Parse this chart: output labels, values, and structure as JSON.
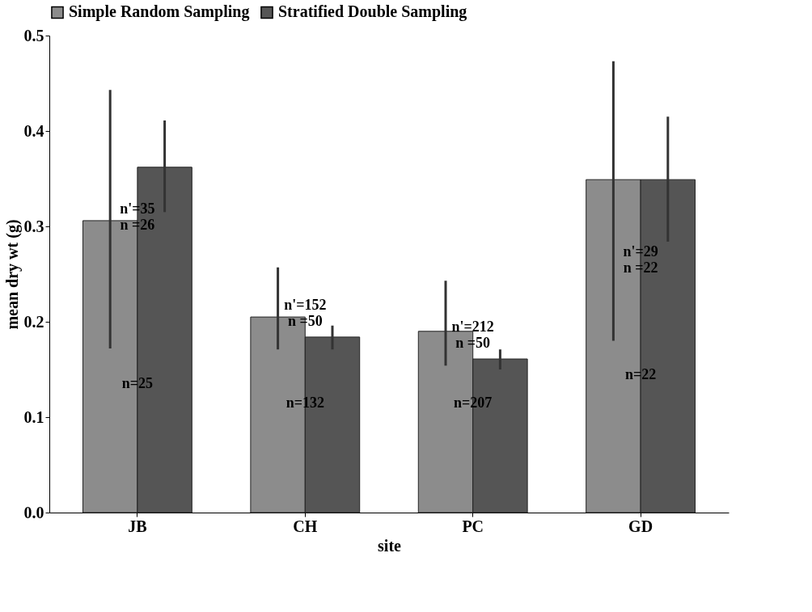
{
  "chart_data": {
    "type": "bar",
    "xlabel": "site",
    "ylabel": "mean dry wt (g)",
    "categories": [
      "JB",
      "CH",
      "PC",
      "GD"
    ],
    "series": [
      {
        "name": "Simple Random Sampling",
        "color": "#8c8c8c",
        "values": [
          0.306,
          0.205,
          0.19,
          0.349
        ],
        "errors": [
          [
            0.172,
            0.443
          ],
          [
            0.171,
            0.257
          ],
          [
            0.154,
            0.243
          ],
          [
            0.18,
            0.473
          ]
        ]
      },
      {
        "name": "Stratified Double Sampling",
        "color": "#555555",
        "values": [
          0.362,
          0.184,
          0.161,
          0.349
        ],
        "errors": [
          [
            0.315,
            0.411
          ],
          [
            0.171,
            0.196
          ],
          [
            0.15,
            0.171
          ],
          [
            0.284,
            0.415
          ]
        ]
      }
    ],
    "ylim": [
      0,
      0.5
    ],
    "yticks": [
      {
        "value": 0,
        "label": "0.0"
      },
      0.1,
      0.2,
      0.3,
      0.4,
      0.5
    ],
    "grid": false,
    "legend": "top",
    "annotations": [
      {
        "text": "n=25",
        "x": "JB",
        "y": 0.12
      },
      {
        "text": "n'=35\nn =26",
        "x": "JB",
        "y": 0.285
      },
      {
        "text": "n'=152\nn =50",
        "x": "CH",
        "y": 0.184
      },
      {
        "text": "n=132",
        "x": "CH",
        "y": 0.1
      },
      {
        "text": "n=207",
        "x": "PC",
        "y": 0.1
      },
      {
        "text": "n'=212\nn =50",
        "x": "PC",
        "y": 0.161
      },
      {
        "text": "n=22",
        "x": "GD",
        "y": 0.13
      },
      {
        "text": "n'=29\nn =22",
        "x": "GD",
        "y": 0.24
      }
    ]
  }
}
